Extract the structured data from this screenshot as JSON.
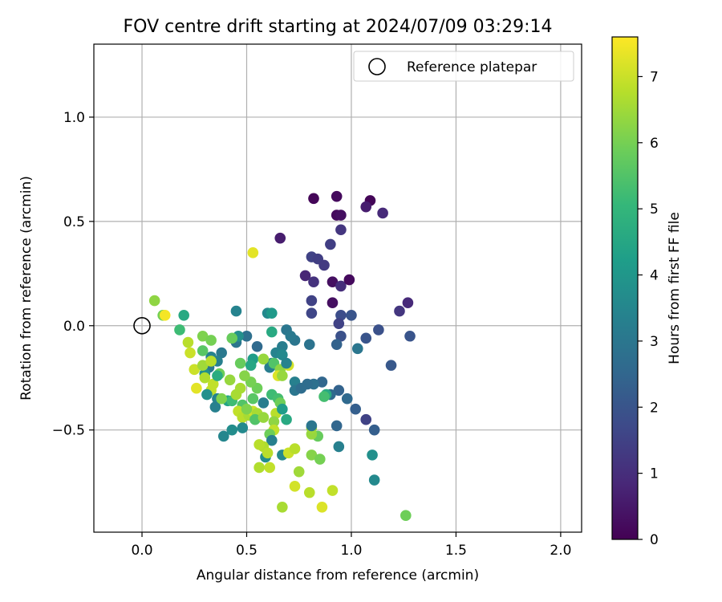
{
  "chart_data": {
    "type": "scatter",
    "title": "FOV centre drift starting at 2024/07/09 03:29:14",
    "xlabel": "Angular distance from reference (arcmin)",
    "ylabel": "Rotation from reference (arcmin)",
    "xlim": [
      -0.23,
      2.1
    ],
    "ylim": [
      -0.99,
      1.35
    ],
    "xticks": [
      0.0,
      0.5,
      1.0,
      1.5,
      2.0
    ],
    "xtick_labels": [
      "0.0",
      "0.5",
      "1.0",
      "1.5",
      "2.0"
    ],
    "yticks": [
      -0.5,
      0.0,
      0.5,
      1.0
    ],
    "ytick_labels": [
      "−0.5",
      "0.0",
      "0.5",
      "1.0"
    ],
    "grid": true,
    "legend": {
      "label": "Reference platepar",
      "placement": "top-right"
    },
    "reference_point": {
      "x": 0.0,
      "y": 0.0
    },
    "colorbar": {
      "label": "Hours from first FF file",
      "min": 0,
      "max": 7.6,
      "ticks": [
        0,
        1,
        2,
        3,
        4,
        5,
        6,
        7
      ],
      "tick_labels": [
        "0",
        "1",
        "2",
        "3",
        "4",
        "5",
        "6",
        "7"
      ],
      "colormap": "viridis",
      "colormap_stops": [
        "#440154",
        "#482878",
        "#3e4989",
        "#31688e",
        "#26828e",
        "#1f9e89",
        "#35b779",
        "#6ece58",
        "#b5de2b",
        "#fde725"
      ]
    },
    "points": [
      [
        0.82,
        0.61,
        0.1
      ],
      [
        0.93,
        0.62,
        0.2
      ],
      [
        1.09,
        0.6,
        0.1
      ],
      [
        0.93,
        0.53,
        0.2
      ],
      [
        0.95,
        0.53,
        0.3
      ],
      [
        1.07,
        0.57,
        0.6
      ],
      [
        1.15,
        0.54,
        0.9
      ],
      [
        0.95,
        0.46,
        1.2
      ],
      [
        0.66,
        0.42,
        0.6
      ],
      [
        0.9,
        0.39,
        1.4
      ],
      [
        0.81,
        0.33,
        1.5
      ],
      [
        0.84,
        0.32,
        1.4
      ],
      [
        0.87,
        0.29,
        1.3
      ],
      [
        0.78,
        0.24,
        0.8
      ],
      [
        0.82,
        0.21,
        1.1
      ],
      [
        0.91,
        0.21,
        0.3
      ],
      [
        0.95,
        0.19,
        1.0
      ],
      [
        0.99,
        0.22,
        0.2
      ],
      [
        0.81,
        0.12,
        1.5
      ],
      [
        0.91,
        0.11,
        0.3
      ],
      [
        0.81,
        0.06,
        1.6
      ],
      [
        0.95,
        0.05,
        1.8
      ],
      [
        1.0,
        0.05,
        2.0
      ],
      [
        0.94,
        0.01,
        1.5
      ],
      [
        1.23,
        0.07,
        1.2
      ],
      [
        1.27,
        0.11,
        0.9
      ],
      [
        1.13,
        -0.02,
        1.9
      ],
      [
        1.07,
        -0.06,
        2.0
      ],
      [
        0.95,
        -0.05,
        1.9
      ],
      [
        0.93,
        -0.09,
        2.4
      ],
      [
        1.03,
        -0.11,
        3.0
      ],
      [
        1.28,
        -0.05,
        2.0
      ],
      [
        1.19,
        -0.19,
        2.1
      ],
      [
        0.98,
        -0.35,
        2.6
      ],
      [
        1.02,
        -0.4,
        2.3
      ],
      [
        1.07,
        -0.45,
        1.5
      ],
      [
        1.11,
        -0.5,
        2.3
      ],
      [
        0.94,
        -0.31,
        2.4
      ],
      [
        0.9,
        -0.33,
        2.6
      ],
      [
        0.86,
        -0.27,
        2.5
      ],
      [
        0.82,
        -0.28,
        2.8
      ],
      [
        0.79,
        -0.28,
        2.7
      ],
      [
        0.8,
        -0.09,
        2.9
      ],
      [
        0.73,
        -0.07,
        3.0
      ],
      [
        0.69,
        -0.02,
        3.0
      ],
      [
        0.71,
        -0.05,
        3.1
      ],
      [
        0.67,
        -0.1,
        3.2
      ],
      [
        0.64,
        -0.13,
        3.4
      ],
      [
        0.67,
        -0.14,
        3.6
      ],
      [
        0.62,
        -0.18,
        3.5
      ],
      [
        0.61,
        -0.2,
        3.2
      ],
      [
        0.6,
        0.06,
        3.6
      ],
      [
        0.62,
        0.06,
        4.1
      ],
      [
        0.62,
        -0.03,
        4.6
      ],
      [
        0.55,
        -0.1,
        2.6
      ],
      [
        0.5,
        -0.05,
        2.8
      ],
      [
        0.45,
        -0.08,
        3.0
      ],
      [
        0.45,
        0.07,
        3.4
      ],
      [
        0.46,
        -0.05,
        3.8
      ],
      [
        0.43,
        -0.06,
        5.8
      ],
      [
        0.38,
        -0.13,
        3.1
      ],
      [
        0.36,
        -0.17,
        3.3
      ],
      [
        0.33,
        -0.15,
        3.4
      ],
      [
        0.32,
        -0.2,
        3.0
      ],
      [
        0.3,
        -0.23,
        3.8
      ],
      [
        0.29,
        -0.12,
        5.6
      ],
      [
        0.29,
        -0.05,
        6.1
      ],
      [
        0.33,
        -0.07,
        6.0
      ],
      [
        0.2,
        0.05,
        4.6
      ],
      [
        0.18,
        -0.02,
        5.2
      ],
      [
        0.1,
        0.05,
        6.0
      ],
      [
        0.11,
        0.05,
        7.5
      ],
      [
        0.06,
        0.12,
        6.3
      ],
      [
        0.22,
        -0.08,
        6.8
      ],
      [
        0.23,
        -0.13,
        7.0
      ],
      [
        0.25,
        -0.21,
        7.0
      ],
      [
        0.29,
        -0.19,
        6.5
      ],
      [
        0.33,
        -0.17,
        6.8
      ],
      [
        0.3,
        -0.25,
        6.7
      ],
      [
        0.34,
        -0.28,
        6.9
      ],
      [
        0.37,
        -0.23,
        5.9
      ],
      [
        0.36,
        -0.24,
        4.7
      ],
      [
        0.33,
        -0.31,
        6.9
      ],
      [
        0.26,
        -0.3,
        7.3
      ],
      [
        0.31,
        -0.33,
        3.8
      ],
      [
        0.36,
        -0.35,
        3.4
      ],
      [
        0.35,
        -0.39,
        3.3
      ],
      [
        0.41,
        -0.36,
        4.4
      ],
      [
        0.43,
        -0.36,
        5.2
      ],
      [
        0.45,
        -0.33,
        6.6
      ],
      [
        0.47,
        -0.3,
        6.6
      ],
      [
        0.48,
        -0.38,
        5.5
      ],
      [
        0.46,
        -0.41,
        6.9
      ],
      [
        0.48,
        -0.44,
        6.8
      ],
      [
        0.51,
        -0.43,
        6.6
      ],
      [
        0.53,
        -0.41,
        7.0
      ],
      [
        0.5,
        -0.4,
        6.1
      ],
      [
        0.55,
        -0.42,
        6.6
      ],
      [
        0.54,
        -0.45,
        5.5
      ],
      [
        0.58,
        -0.44,
        6.4
      ],
      [
        0.58,
        -0.37,
        3.2
      ],
      [
        0.53,
        -0.35,
        5.6
      ],
      [
        0.55,
        -0.3,
        5.9
      ],
      [
        0.52,
        -0.27,
        6.0
      ],
      [
        0.49,
        -0.24,
        6.2
      ],
      [
        0.47,
        -0.18,
        5.8
      ],
      [
        0.53,
        -0.16,
        4.2
      ],
      [
        0.52,
        -0.19,
        4.5
      ],
      [
        0.58,
        -0.16,
        6.4
      ],
      [
        0.63,
        -0.18,
        5.5
      ],
      [
        0.66,
        -0.21,
        6.3
      ],
      [
        0.65,
        -0.24,
        7.2
      ],
      [
        0.67,
        -0.24,
        6.4
      ],
      [
        0.7,
        -0.19,
        7.1
      ],
      [
        0.69,
        -0.18,
        3.4
      ],
      [
        0.73,
        -0.27,
        3.3
      ],
      [
        0.73,
        -0.31,
        3.0
      ],
      [
        0.76,
        -0.3,
        2.7
      ],
      [
        0.62,
        -0.33,
        5.2
      ],
      [
        0.65,
        -0.35,
        5.3
      ],
      [
        0.66,
        -0.37,
        5.9
      ],
      [
        0.64,
        -0.42,
        6.8
      ],
      [
        0.67,
        -0.4,
        4.2
      ],
      [
        0.69,
        -0.45,
        4.6
      ],
      [
        0.63,
        -0.46,
        6.3
      ],
      [
        0.63,
        -0.5,
        6.9
      ],
      [
        0.61,
        -0.52,
        5.9
      ],
      [
        0.62,
        -0.55,
        3.3
      ],
      [
        0.58,
        -0.58,
        6.7
      ],
      [
        0.56,
        -0.57,
        6.8
      ],
      [
        0.59,
        -0.63,
        3.7
      ],
      [
        0.6,
        -0.61,
        6.8
      ],
      [
        0.56,
        -0.68,
        6.7
      ],
      [
        0.61,
        -0.68,
        6.9
      ],
      [
        0.67,
        -0.62,
        3.6
      ],
      [
        0.7,
        -0.61,
        7.0
      ],
      [
        0.73,
        -0.59,
        6.8
      ],
      [
        0.75,
        -0.7,
        6.5
      ],
      [
        0.73,
        -0.77,
        7.1
      ],
      [
        0.67,
        -0.87,
        6.6
      ],
      [
        0.8,
        -0.8,
        6.8
      ],
      [
        0.86,
        -0.87,
        7.2
      ],
      [
        0.91,
        -0.79,
        6.9
      ],
      [
        0.81,
        -0.62,
        6.2
      ],
      [
        0.85,
        -0.64,
        6.0
      ],
      [
        0.84,
        -0.53,
        5.8
      ],
      [
        0.81,
        -0.52,
        6.4
      ],
      [
        0.81,
        -0.49,
        6.5
      ],
      [
        0.81,
        -0.48,
        3.0
      ],
      [
        0.93,
        -0.48,
        2.5
      ],
      [
        0.94,
        -0.58,
        3.3
      ],
      [
        1.1,
        -0.62,
        3.8
      ],
      [
        1.11,
        -0.74,
        3.6
      ],
      [
        1.26,
        -0.91,
        5.9
      ],
      [
        0.39,
        -0.53,
        3.5
      ],
      [
        0.43,
        -0.5,
        3.7
      ],
      [
        0.48,
        -0.49,
        3.6
      ],
      [
        0.42,
        -0.26,
        6.4
      ],
      [
        0.38,
        -0.35,
        6.1
      ],
      [
        0.88,
        -0.33,
        4.6
      ],
      [
        0.87,
        -0.34,
        5.3
      ],
      [
        0.53,
        0.35,
        7.3
      ]
    ]
  }
}
